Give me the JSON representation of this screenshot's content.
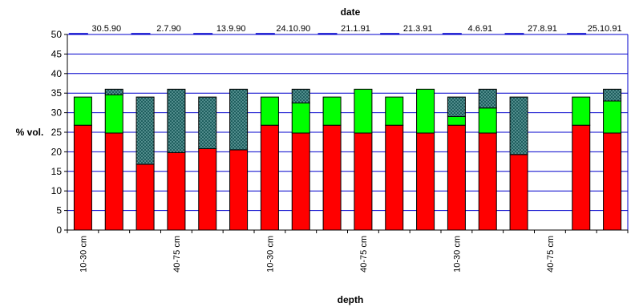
{
  "chart_data": {
    "type": "bar",
    "stacked": true,
    "title": "date",
    "xlabel": "depth",
    "ylabel": "% vol.",
    "ylim": [
      0,
      50
    ],
    "ytick_step": 5,
    "yticks": [
      "0",
      "5",
      "10",
      "15",
      "20",
      "25",
      "30",
      "35",
      "40",
      "45",
      "50"
    ],
    "grid": true,
    "legend_position": "top",
    "dates": [
      "30.5.90",
      "2.7.90",
      "13.9.90",
      "24.10.90",
      "21.1.91",
      "21.3.91",
      "4.6.91",
      "27.8.91",
      "25.10.91"
    ],
    "depth_labels": [
      "10-30 cm",
      "40-75 cm"
    ],
    "series_colors": [
      "#ff0000",
      "#00ff00",
      "#1f5f5f"
    ],
    "gridline_color": "#0000cc",
    "bars": [
      {
        "date": "30.5.90",
        "depth": "10-30 cm",
        "values": [
          26.8,
          7.2,
          0
        ]
      },
      {
        "date": "30.5.90",
        "depth": "40-75 cm",
        "values": [
          24.8,
          9.8,
          1.4
        ]
      },
      {
        "date": "2.7.90",
        "depth": "10-30 cm",
        "values": [
          16.8,
          0,
          17.2
        ]
      },
      {
        "date": "2.7.90",
        "depth": "40-75 cm",
        "values": [
          19.8,
          0,
          16.2
        ]
      },
      {
        "date": "13.9.90",
        "depth": "10-30 cm",
        "values": [
          20.8,
          0,
          13.2
        ]
      },
      {
        "date": "13.9.90",
        "depth": "40-75 cm",
        "values": [
          20.5,
          0,
          15.5
        ]
      },
      {
        "date": "24.10.90",
        "depth": "10-30 cm",
        "values": [
          26.8,
          7.2,
          0
        ]
      },
      {
        "date": "24.10.90",
        "depth": "40-75 cm",
        "values": [
          24.8,
          7.7,
          3.5
        ]
      },
      {
        "date": "21.1.91",
        "depth": "10-30 cm",
        "values": [
          26.8,
          7.2,
          0
        ]
      },
      {
        "date": "21.1.91",
        "depth": "40-75 cm",
        "values": [
          24.8,
          11.2,
          0
        ]
      },
      {
        "date": "21.3.91",
        "depth": "10-30 cm",
        "values": [
          26.8,
          7.2,
          0
        ]
      },
      {
        "date": "21.3.91",
        "depth": "40-75 cm",
        "values": [
          24.8,
          11.2,
          0
        ]
      },
      {
        "date": "4.6.91",
        "depth": "10-30 cm",
        "values": [
          26.8,
          2.2,
          5.0
        ]
      },
      {
        "date": "4.6.91",
        "depth": "40-75 cm",
        "values": [
          24.8,
          6.4,
          4.8
        ]
      },
      {
        "date": "27.8.91",
        "depth": "10-30 cm",
        "values": [
          19.3,
          0,
          14.7
        ]
      },
      {
        "date": "27.8.91",
        "depth": "40-75 cm",
        "values": [
          0,
          0,
          0
        ]
      },
      {
        "date": "25.10.91",
        "depth": "10-30 cm",
        "values": [
          26.8,
          7.2,
          0
        ]
      },
      {
        "date": "25.10.91",
        "depth": "40-75 cm",
        "values": [
          24.8,
          8.2,
          3.0
        ]
      }
    ]
  }
}
